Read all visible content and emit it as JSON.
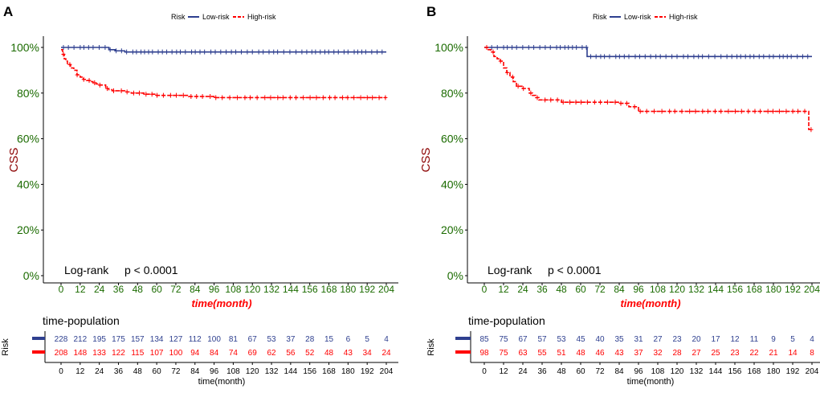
{
  "legend_colors": {
    "low": "#2e3f8f",
    "high": "#ff0000"
  },
  "axis_colors": {
    "ytick": "#1b6b00",
    "ylabel": "#8b0000",
    "xlabel": "#ff0000",
    "xtick": "#1b6b00"
  },
  "chart_data": [
    {
      "type": "line",
      "panel_label": "A",
      "legend": {
        "title": "Risk",
        "low": "Low-risk",
        "high": "High-risk"
      },
      "ylabel": "CSS",
      "xlabel": "time(month)",
      "ylim": [
        0,
        100
      ],
      "xlim": [
        0,
        204
      ],
      "yticks": [
        "0%",
        "20%",
        "40%",
        "60%",
        "80%",
        "100%"
      ],
      "xticks": [
        "0",
        "12",
        "24",
        "36",
        "48",
        "60",
        "72",
        "84",
        "96",
        "108",
        "120",
        "132",
        "144",
        "156",
        "168",
        "180",
        "192",
        "204"
      ],
      "annotation": {
        "label": "Log-rank",
        "pvalue": "p < 0.0001"
      },
      "series": [
        {
          "name": "Low-risk",
          "x": [
            0,
            12,
            24,
            30,
            34,
            40,
            60,
            80,
            100,
            120,
            140,
            160,
            180,
            200,
            204
          ],
          "values": [
            100,
            100,
            100,
            99,
            98.5,
            98,
            98,
            98,
            98,
            98,
            98,
            98,
            98,
            98,
            98
          ]
        },
        {
          "name": "High-risk",
          "x": [
            0,
            1,
            2,
            3,
            4,
            6,
            8,
            10,
            12,
            14,
            16,
            18,
            20,
            22,
            24,
            28,
            30,
            32,
            36,
            40,
            44,
            48,
            52,
            56,
            60,
            68,
            76,
            80,
            88,
            96,
            120,
            140,
            160,
            180,
            204
          ],
          "values": [
            99,
            97,
            95,
            94,
            92.5,
            91,
            90,
            88,
            87,
            86,
            85.5,
            85,
            84.5,
            84,
            83.5,
            82,
            81.5,
            81,
            81,
            80.5,
            80,
            80,
            79.5,
            79.5,
            79,
            79,
            79,
            78.5,
            78.5,
            78,
            78,
            78,
            78,
            78,
            78
          ]
        }
      ],
      "risk_table": {
        "title": "time-population",
        "ylabel": "Risk",
        "xlabel": "time(month)",
        "ticks": [
          "0",
          "12",
          "24",
          "36",
          "48",
          "60",
          "72",
          "84",
          "96",
          "108",
          "120",
          "132",
          "144",
          "156",
          "168",
          "180",
          "192",
          "204"
        ],
        "low": [
          "228",
          "212",
          "195",
          "175",
          "157",
          "134",
          "127",
          "112",
          "100",
          "81",
          "67",
          "53",
          "37",
          "28",
          "15",
          "6",
          "5",
          "4"
        ],
        "high": [
          "208",
          "148",
          "133",
          "122",
          "115",
          "107",
          "100",
          "94",
          "84",
          "74",
          "69",
          "62",
          "56",
          "52",
          "48",
          "43",
          "34",
          "24"
        ]
      }
    },
    {
      "type": "line",
      "panel_label": "B",
      "legend": {
        "title": "Risk",
        "low": "Low-risk",
        "high": "High-risk"
      },
      "ylabel": "CSS",
      "xlabel": "time(month)",
      "ylim": [
        0,
        100
      ],
      "xlim": [
        0,
        204
      ],
      "yticks": [
        "0%",
        "20%",
        "40%",
        "60%",
        "80%",
        "100%"
      ],
      "xticks": [
        "0",
        "12",
        "24",
        "36",
        "48",
        "60",
        "72",
        "84",
        "96",
        "108",
        "120",
        "132",
        "144",
        "156",
        "168",
        "180",
        "192",
        "204"
      ],
      "annotation": {
        "label": "Log-rank",
        "pvalue": "p < 0.0001"
      },
      "series": [
        {
          "name": "Low-risk",
          "x": [
            0,
            30,
            58,
            64,
            80,
            120,
            160,
            204
          ],
          "values": [
            100,
            100,
            100,
            96,
            96,
            96,
            96,
            96
          ]
        },
        {
          "name": "High-risk",
          "x": [
            0,
            2,
            4,
            6,
            8,
            10,
            12,
            14,
            16,
            18,
            20,
            24,
            28,
            30,
            32,
            34,
            40,
            48,
            56,
            68,
            84,
            90,
            96,
            120,
            150,
            180,
            198,
            200,
            202,
            204
          ],
          "values": [
            100,
            99,
            98,
            96,
            95,
            94,
            91,
            89,
            87,
            85,
            83,
            82,
            80,
            79,
            78,
            77,
            77,
            76,
            76,
            76,
            75.5,
            74,
            72,
            72,
            72,
            72,
            72,
            72,
            64,
            64
          ]
        }
      ],
      "risk_table": {
        "title": "time-population",
        "ylabel": "Risk",
        "xlabel": "time(month)",
        "ticks": [
          "0",
          "12",
          "24",
          "36",
          "48",
          "60",
          "72",
          "84",
          "96",
          "108",
          "120",
          "132",
          "144",
          "156",
          "168",
          "180",
          "192",
          "204"
        ],
        "low": [
          "85",
          "75",
          "67",
          "57",
          "53",
          "45",
          "40",
          "35",
          "31",
          "27",
          "23",
          "20",
          "17",
          "12",
          "11",
          "9",
          "5",
          "4"
        ],
        "high": [
          "98",
          "75",
          "63",
          "55",
          "51",
          "48",
          "46",
          "43",
          "37",
          "32",
          "28",
          "27",
          "25",
          "23",
          "22",
          "21",
          "14",
          "8"
        ]
      }
    }
  ]
}
